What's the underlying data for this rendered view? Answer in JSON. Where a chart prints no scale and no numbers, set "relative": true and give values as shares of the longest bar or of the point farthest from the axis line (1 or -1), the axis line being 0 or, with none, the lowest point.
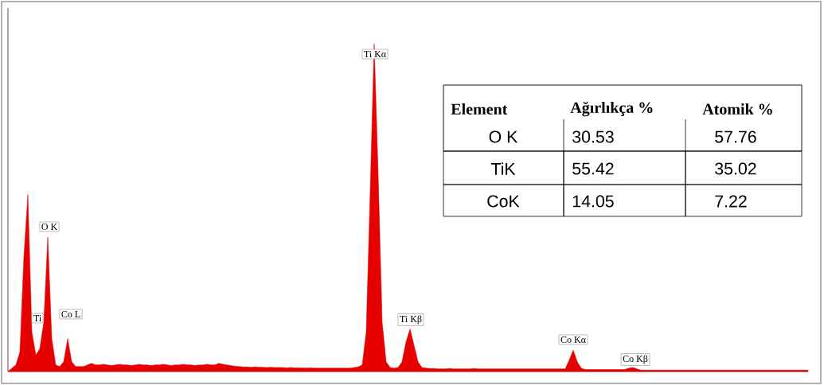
{
  "chart_data": {
    "type": "area",
    "relative": true,
    "color": "#e60000",
    "categories": [
      null,
      null,
      null,
      null,
      null,
      null,
      null,
      null,
      null,
      null,
      null,
      null,
      null,
      null,
      null,
      null,
      null,
      null,
      null,
      null,
      null,
      null,
      null,
      null,
      null,
      null,
      null,
      null,
      null,
      null,
      null,
      null,
      null,
      null,
      null,
      null,
      null,
      null,
      null,
      null,
      null,
      null,
      null,
      null,
      null,
      null,
      null,
      null,
      null,
      null,
      null,
      null,
      null,
      null,
      null,
      null,
      null,
      null,
      null,
      null,
      null,
      null,
      null,
      null,
      null,
      null,
      null,
      null,
      null,
      null,
      null,
      null,
      null,
      null,
      null,
      null,
      null,
      null,
      null,
      null,
      null,
      null,
      null,
      null,
      null,
      null,
      null,
      null,
      null,
      null,
      null,
      null,
      null,
      null,
      null,
      null,
      null,
      null,
      null,
      null,
      null,
      null,
      null,
      null,
      null,
      null,
      null,
      null,
      null,
      null,
      null,
      null,
      null,
      null,
      null,
      null,
      null,
      null,
      null,
      null,
      null,
      null,
      null,
      null,
      null,
      null,
      null,
      null,
      null,
      null,
      null,
      null,
      null,
      null,
      null,
      null,
      null,
      null,
      null,
      null,
      null,
      null,
      null,
      null,
      null,
      null,
      null,
      null,
      null,
      null,
      null,
      null,
      null,
      null,
      null,
      null,
      null,
      null,
      null,
      null,
      null,
      null,
      null,
      null,
      null,
      null,
      null,
      null,
      null,
      null,
      null,
      null,
      null,
      null,
      null,
      null,
      null,
      null,
      null,
      null,
      null,
      null,
      null,
      null,
      null,
      null,
      null,
      null,
      null,
      null,
      null,
      null,
      null,
      null,
      null,
      null,
      null,
      null,
      null,
      null,
      null,
      null
    ],
    "values": [
      0,
      0.01,
      0.02,
      0.06,
      0.35,
      0.54,
      0.12,
      0.05,
      0.07,
      0.15,
      0.41,
      0.1,
      0.02,
      0.015,
      0.03,
      0.1,
      0.03,
      0.015,
      0.015,
      0.015,
      0.02,
      0.025,
      0.02,
      0.02,
      0.022,
      0.02,
      0.018,
      0.02,
      0.022,
      0.02,
      0.02,
      0.018,
      0.02,
      0.022,
      0.02,
      0.02,
      0.018,
      0.02,
      0.02,
      0.022,
      0.02,
      0.018,
      0.02,
      0.02,
      0.022,
      0.02,
      0.02,
      0.018,
      0.02,
      0.02,
      0.022,
      0.02,
      0.02,
      0.025,
      0.022,
      0.02,
      0.018,
      0.016,
      0.015,
      0.014,
      0.014,
      0.013,
      0.014,
      0.013,
      0.013,
      0.012,
      0.013,
      0.012,
      0.012,
      0.012,
      0.011,
      0.012,
      0.011,
      0.011,
      0.011,
      0.01,
      0.011,
      0.01,
      0.01,
      0.01,
      0.01,
      0.01,
      0.01,
      0.01,
      0.01,
      0.01,
      0.01,
      0.012,
      0.014,
      0.02,
      0.12,
      0.55,
      1.0,
      0.6,
      0.15,
      0.03,
      0.012,
      0.01,
      0.012,
      0.03,
      0.09,
      0.13,
      0.08,
      0.03,
      0.012,
      0.01,
      0.009,
      0.009,
      0.008,
      0.008,
      0.008,
      0.009,
      0.008,
      0.008,
      0.008,
      0.008,
      0.008,
      0.009,
      0.008,
      0.008,
      0.008,
      0.008,
      0.008,
      0.008,
      0.008,
      0.008,
      0.008,
      0.008,
      0.008,
      0.008,
      0.008,
      0.008,
      0.008,
      0.008,
      0.008,
      0.008,
      0.008,
      0.008,
      0.008,
      0.008,
      0.008,
      0.035,
      0.065,
      0.03,
      0.01,
      0.006,
      0.006,
      0.006,
      0.006,
      0.006,
      0.006,
      0.006,
      0.006,
      0.006,
      0.006,
      0.006,
      0.01,
      0.012,
      0.008,
      0.004,
      0.004,
      0.004,
      0.004,
      0.004,
      0.004,
      0.004,
      0.004,
      0.004,
      0.004,
      0.004,
      0.004,
      0.004,
      0.004,
      0.004,
      0.004,
      0.004,
      0.004,
      0.004,
      0.004,
      0.004,
      0.004,
      0.004,
      0.004,
      0.004,
      0.004,
      0.004,
      0.004,
      0.004,
      0.004,
      0.004,
      0.004,
      0.004,
      0.004,
      0.004,
      0.004,
      0.004,
      0.004,
      0.004,
      0.004,
      0.004,
      0.004,
      0.004
    ],
    "annotations": [
      "Ti Kα",
      "O K",
      "Ti",
      "Co L",
      "Ti Kβ",
      "Co Kα",
      "Co Kβ",
      "Element",
      "Ağırlıkça %",
      "Atomik %",
      "O K",
      "30.53",
      "57.76",
      "TiK",
      "55.42",
      "35.02",
      "CoK",
      "14.05",
      "7.22"
    ]
  }
}
